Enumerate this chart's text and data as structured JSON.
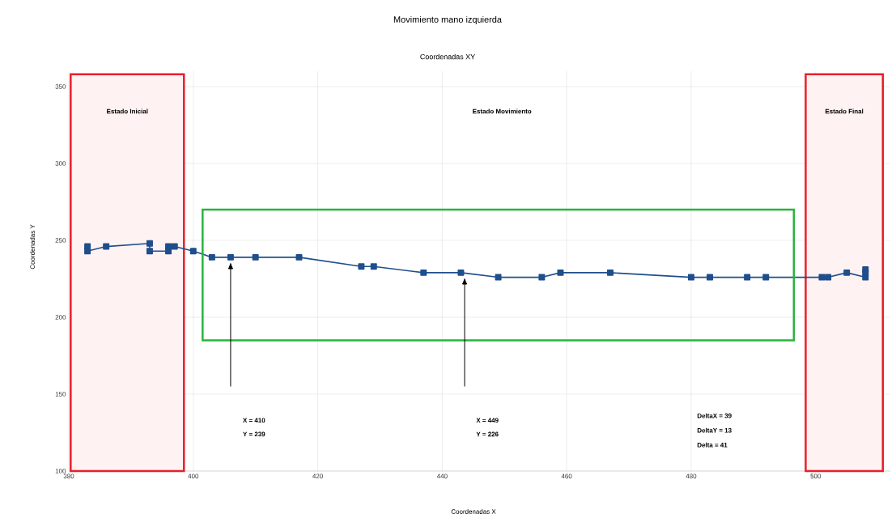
{
  "chart_data": {
    "type": "line",
    "title": "Movimiento mano izquierda",
    "subtitle": "Coordenadas XY",
    "xlabel": "Coordenadas X",
    "ylabel": "Coordenadas Y",
    "x": [
      383,
      383,
      386,
      393,
      393,
      396,
      396,
      397,
      400,
      403,
      406,
      410,
      417,
      427,
      429,
      437,
      443,
      449,
      456,
      459,
      467,
      480,
      483,
      489,
      492,
      501,
      502,
      505,
      508,
      508,
      508
    ],
    "series": [
      {
        "color": "#1f4e8c",
        "values": [
          246,
          243,
          246,
          248,
          243,
          243,
          246,
          246,
          243,
          239,
          239,
          239,
          239,
          233,
          233,
          229,
          229,
          226,
          226,
          229,
          229,
          226,
          226,
          226,
          226,
          226,
          226,
          229,
          226,
          231,
          229
        ]
      }
    ],
    "xlim": [
      380,
      512
    ],
    "ylim": [
      100,
      360
    ],
    "xticks": [
      380,
      400,
      420,
      440,
      460,
      480,
      500
    ],
    "yticks": [
      100,
      150,
      200,
      250,
      300,
      350
    ],
    "grid": true,
    "marker": "square",
    "line_style": "solid",
    "bands": [
      {
        "axis": "x",
        "from": 380.3,
        "to": 398.5,
        "label": "Estado Inicial",
        "color": "#e8202a"
      },
      {
        "axis": "x",
        "from": 498.4,
        "to": 510.8,
        "label": "Estado Final",
        "color": "#e8202a"
      }
    ],
    "annotations": [
      "Estado Movimiento",
      "X = 410",
      "Y = 239",
      "X = 449",
      "Y = 226",
      "DeltaX = 39",
      "DeltaY = 13",
      "Delta = 41"
    ]
  }
}
